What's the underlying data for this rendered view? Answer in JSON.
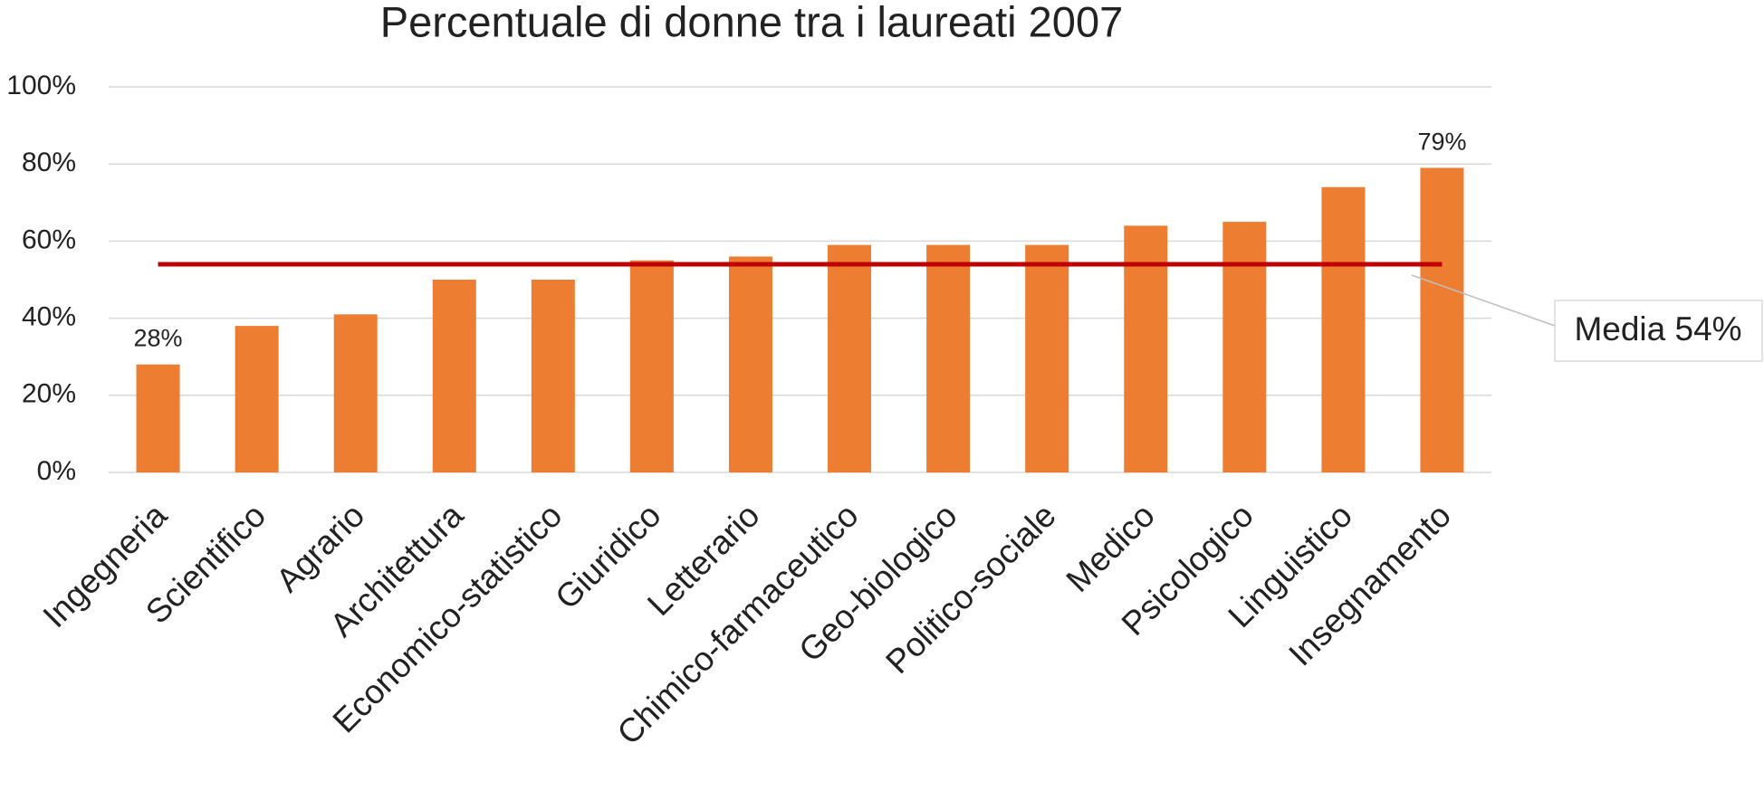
{
  "chart_data": {
    "type": "bar",
    "title": "Percentuale di donne tra i laureati 2007",
    "categories": [
      "Ingegneria",
      "Scientifico",
      "Agrario",
      "Architettura",
      "Economico-statistico",
      "Giuridico",
      "Letterario",
      "Chimico-farmaceutico",
      "Geo-biologico",
      "Politico-sociale",
      "Medico",
      "Psicologico",
      "Linguistico",
      "Insegnamento"
    ],
    "values": [
      28,
      38,
      41,
      50,
      50,
      55,
      56,
      59,
      59,
      59,
      64,
      65,
      74,
      79
    ],
    "value_labels": [
      "28%",
      null,
      null,
      null,
      null,
      null,
      null,
      null,
      null,
      null,
      null,
      null,
      null,
      "79%"
    ],
    "color": "#ed7d31",
    "ylim": [
      0,
      100
    ],
    "yticks": [
      {
        "value": 0,
        "label": "0%"
      },
      {
        "value": 20,
        "label": "20%"
      },
      {
        "value": 40,
        "label": "40%"
      },
      {
        "value": 60,
        "label": "60%"
      },
      {
        "value": 80,
        "label": "80%"
      },
      {
        "value": 100,
        "label": "100%"
      }
    ],
    "grid": true,
    "reference_line": {
      "value": 54,
      "label": "Media 54%",
      "color": "#c00000"
    }
  }
}
